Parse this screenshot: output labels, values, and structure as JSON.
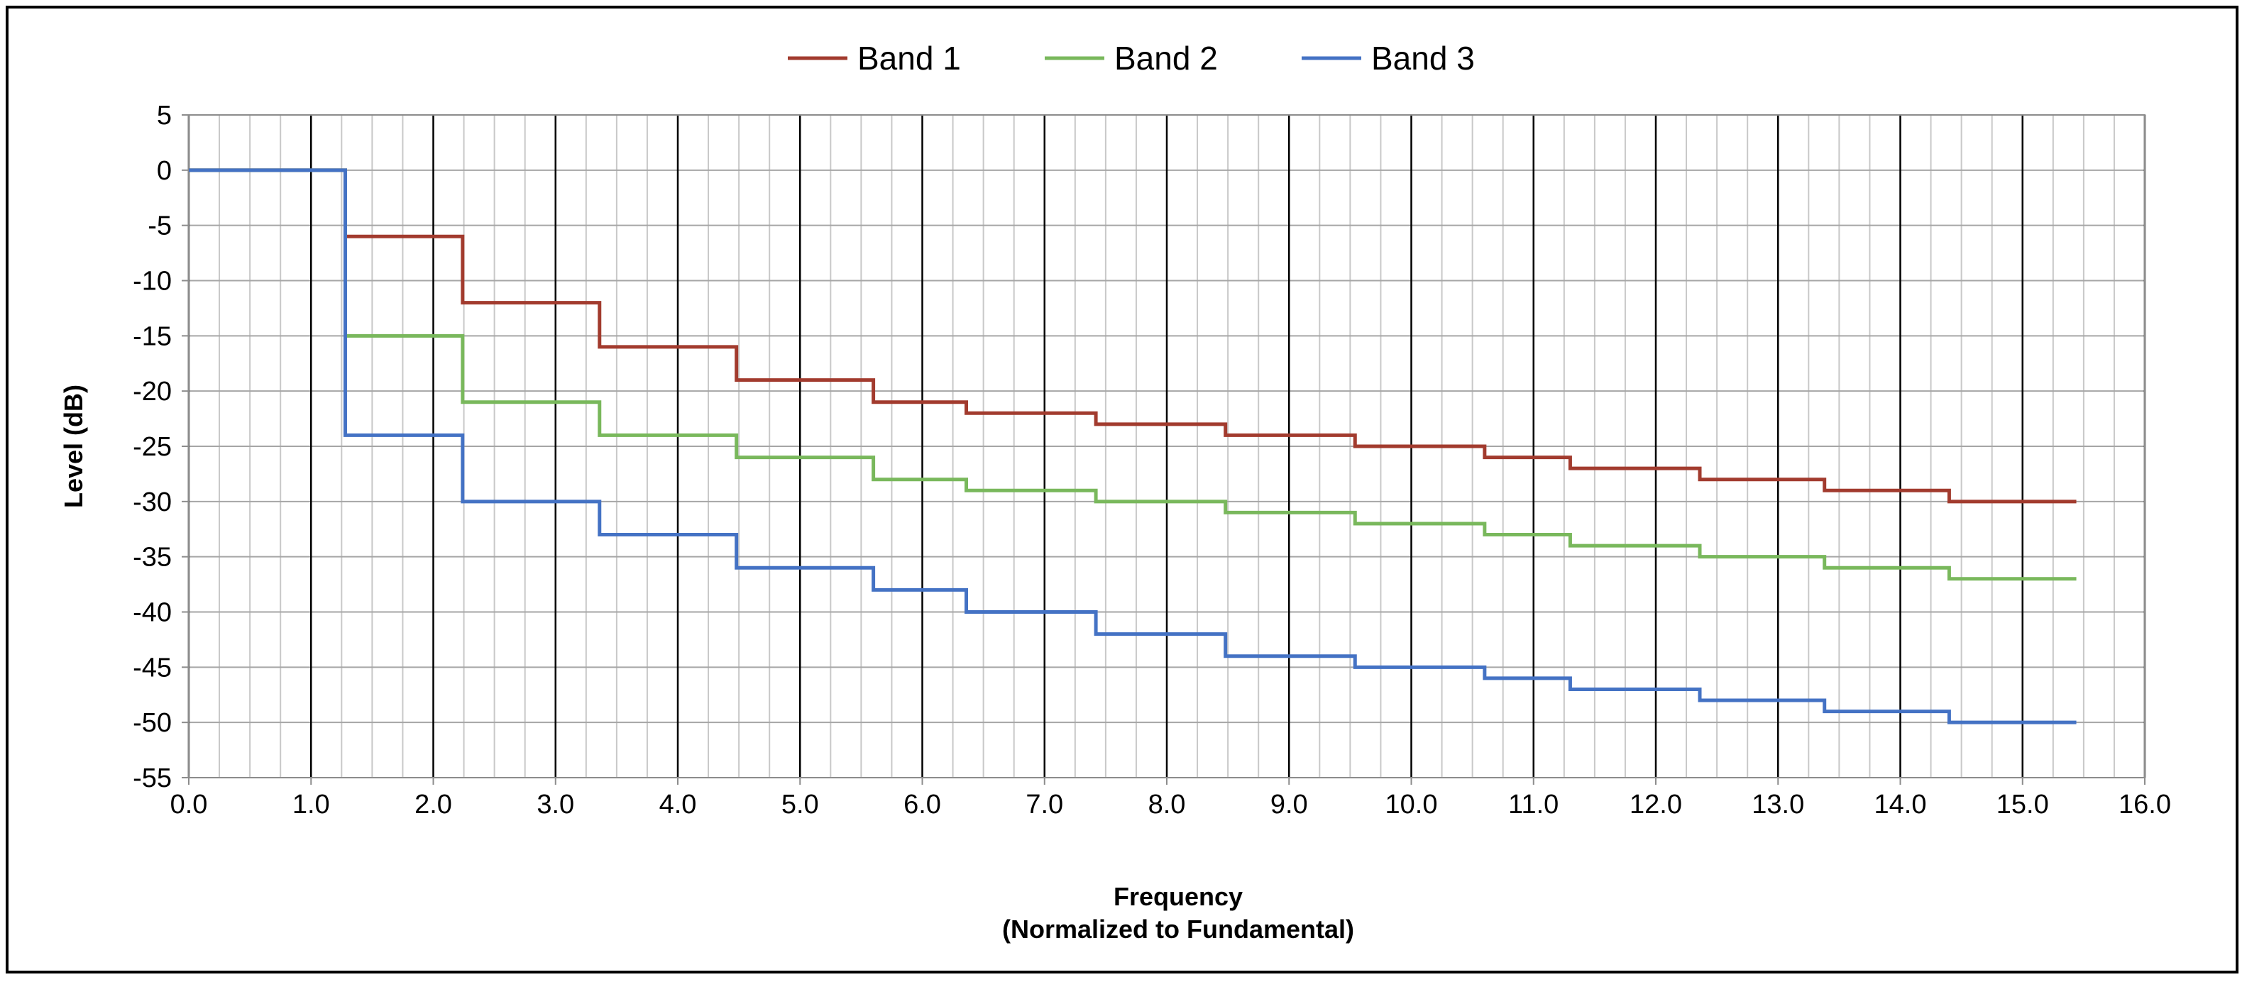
{
  "chart_data": {
    "type": "line",
    "step": true,
    "xlabel": [
      "Frequency",
      "(Normalized to Fundamental)"
    ],
    "ylabel": "Level (dB)",
    "xlim": [
      0,
      16
    ],
    "ylim": [
      -55,
      5
    ],
    "x_ticks": [
      "0.0",
      "1.0",
      "2.0",
      "3.0",
      "4.0",
      "5.0",
      "6.0",
      "7.0",
      "8.0",
      "9.0",
      "10.0",
      "11.0",
      "12.0",
      "13.0",
      "14.0",
      "15.0",
      "16.0"
    ],
    "y_ticks": [
      "5",
      "0",
      "-5",
      "-10",
      "-15",
      "-20",
      "-25",
      "-30",
      "-35",
      "-40",
      "-45",
      "-50",
      "-55"
    ],
    "minor_x_step": 0.25,
    "legend_position": "top-center",
    "grid": true,
    "steps_x": [
      0,
      1.28,
      2.24,
      3.36,
      4.48,
      5.6,
      6.36,
      7.42,
      8.48,
      9.54,
      10.6,
      11.3,
      12.36,
      13.38,
      14.4,
      15.44
    ],
    "series": [
      {
        "name": "Band 1",
        "color": "#A23B2E",
        "values": [
          0,
          -6,
          -12,
          -16,
          -19,
          -21,
          -22,
          -23,
          -24,
          -25,
          -26,
          -27,
          -28,
          -29,
          -30
        ]
      },
      {
        "name": "Band 2",
        "color": "#79B85C",
        "values": [
          0,
          -15,
          -21,
          -24,
          -26,
          -28,
          -29,
          -30,
          -31,
          -32,
          -33,
          -34,
          -35,
          -36,
          -37
        ]
      },
      {
        "name": "Band 3",
        "color": "#4472C4",
        "values": [
          0,
          -24,
          -30,
          -33,
          -36,
          -38,
          -40,
          -42,
          -44,
          -45,
          -46,
          -47,
          -48,
          -49,
          -50
        ]
      }
    ]
  }
}
